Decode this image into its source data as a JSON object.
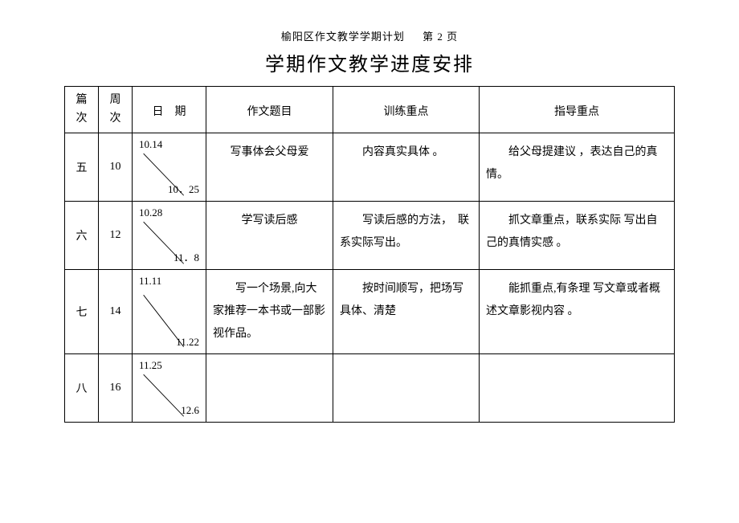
{
  "header": {
    "small": "榆阳区作文教学学期计划",
    "page": "第 2 页",
    "title": "学期作文教学进度安排"
  },
  "columns": {
    "c1": "篇\n次",
    "c2": "周\n次",
    "c3": "日　期",
    "c4": "作文题目",
    "c5": "训练重点",
    "c6": "指导重点"
  },
  "rows": [
    {
      "pian": "五",
      "zhou": "10",
      "date_start": "10.14",
      "date_end": "10．25",
      "topic": "写事体会父母爱",
      "training": "内容真实具体 。",
      "guidance": "给父母提建议 ，表达自己的真情。"
    },
    {
      "pian": "六",
      "zhou": "12",
      "date_start": "10.28",
      "date_end": "11．8",
      "topic": "学写读后感",
      "training": "写读后感的方法，　联系实际写出。",
      "guidance": "抓文章重点，联系实际 写出自己的真情实感 。"
    },
    {
      "pian": "七",
      "zhou": "14",
      "date_start": "11.11",
      "date_end": "11.22",
      "topic": "写一个场景,向大家推荐一本书或一部影视作品。",
      "training": "按时间顺写，把场写具体、清楚",
      "guidance": "能抓重点,有条理 写文章或者概述文章影视内容 。"
    },
    {
      "pian": "八",
      "zhou": "16",
      "date_start": "11.25",
      "date_end": "12.6",
      "topic": "",
      "training": "",
      "guidance": ""
    }
  ],
  "style": {
    "text_color": "#000000",
    "bg_color": "#ffffff",
    "border_color": "#000000",
    "title_fontsize": 24,
    "body_fontsize": 14,
    "small_fontsize": 13
  }
}
